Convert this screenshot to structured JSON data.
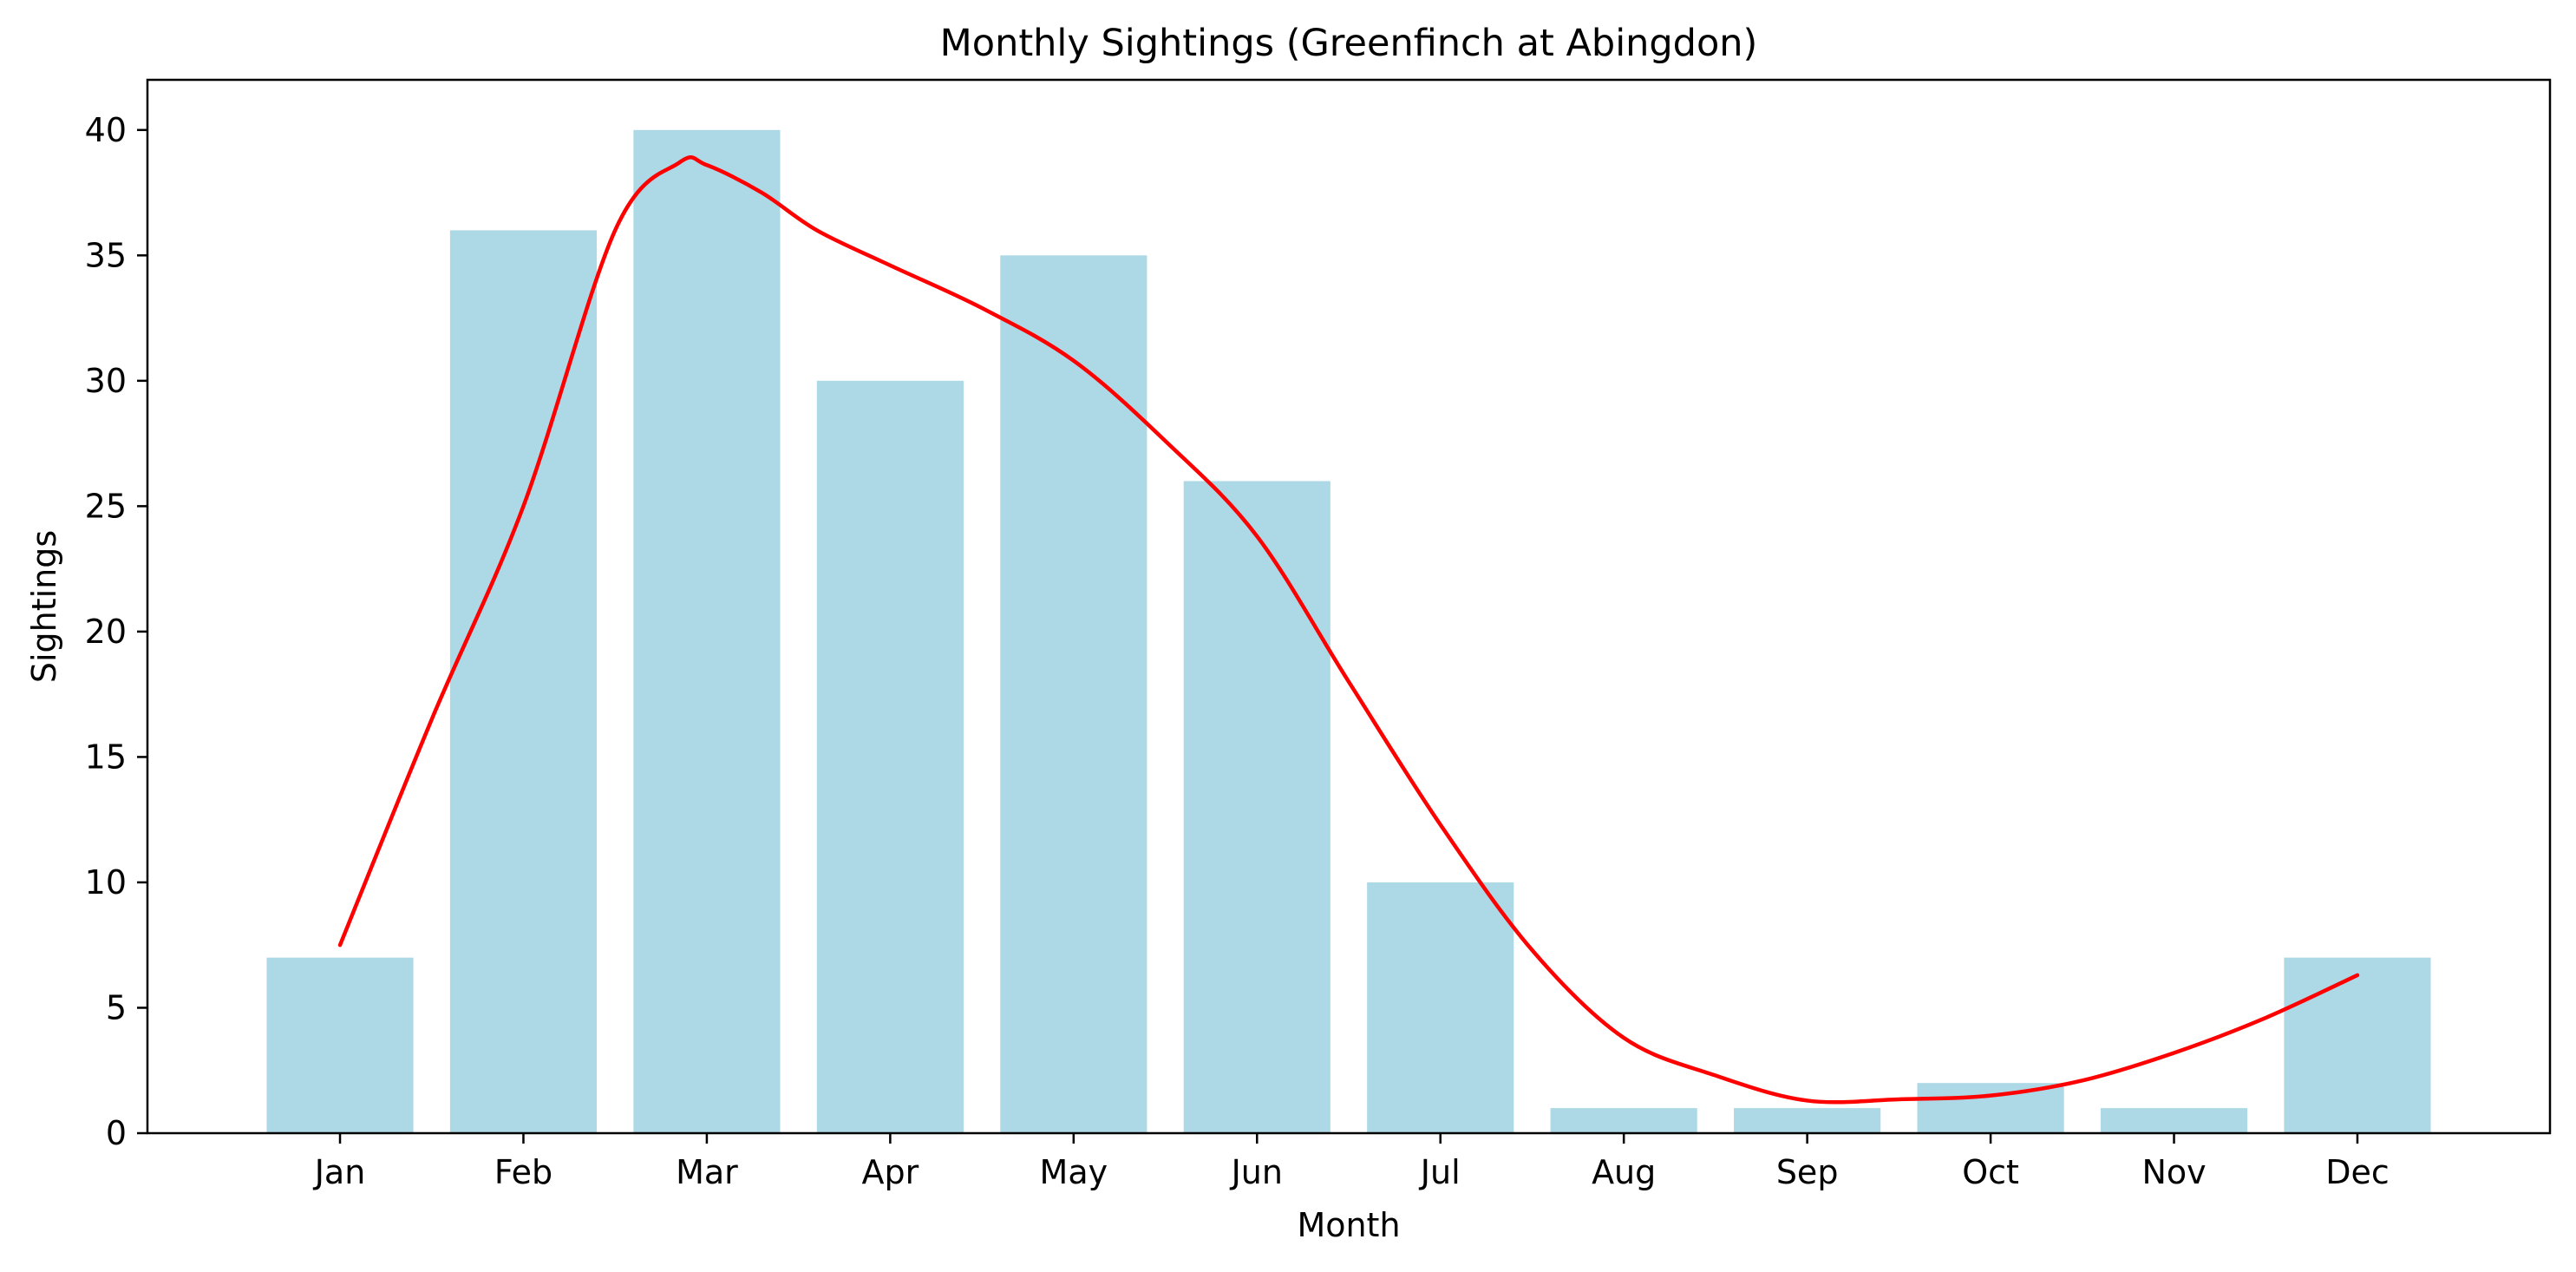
{
  "chart_data": {
    "type": "bar",
    "title": "Monthly Sightings (Greenfinch at Abingdon)",
    "xlabel": "Month",
    "ylabel": "Sightings",
    "categories": [
      "Jan",
      "Feb",
      "Mar",
      "Apr",
      "May",
      "Jun",
      "Jul",
      "Aug",
      "Sep",
      "Oct",
      "Nov",
      "Dec"
    ],
    "values": [
      7,
      36,
      40,
      30,
      35,
      26,
      10,
      1,
      1,
      2,
      1,
      7
    ],
    "ylim": [
      0,
      42
    ],
    "yticks": [
      0,
      5,
      10,
      15,
      20,
      25,
      30,
      35,
      40
    ],
    "bar_color": "#add8e6",
    "grid": false,
    "legend": "none",
    "series": [
      {
        "type": "line",
        "color": "#ff0000",
        "x": [
          0,
          0.5,
          1,
          1.5,
          1.85,
          2,
          2.3,
          2.6,
          3,
          3.5,
          4,
          4.5,
          5,
          5.5,
          6,
          6.5,
          7,
          7.5,
          8,
          8.5,
          9,
          9.5,
          10,
          10.5,
          11
        ],
        "y": [
          7.5,
          16.5,
          25,
          36,
          38.7,
          38.6,
          37.5,
          36,
          34.6,
          32.9,
          30.8,
          27.6,
          23.8,
          18,
          12.3,
          7.3,
          3.8,
          2.3,
          1.3,
          1.35,
          1.5,
          2.1,
          3.2,
          4.6,
          6.3
        ]
      }
    ]
  }
}
